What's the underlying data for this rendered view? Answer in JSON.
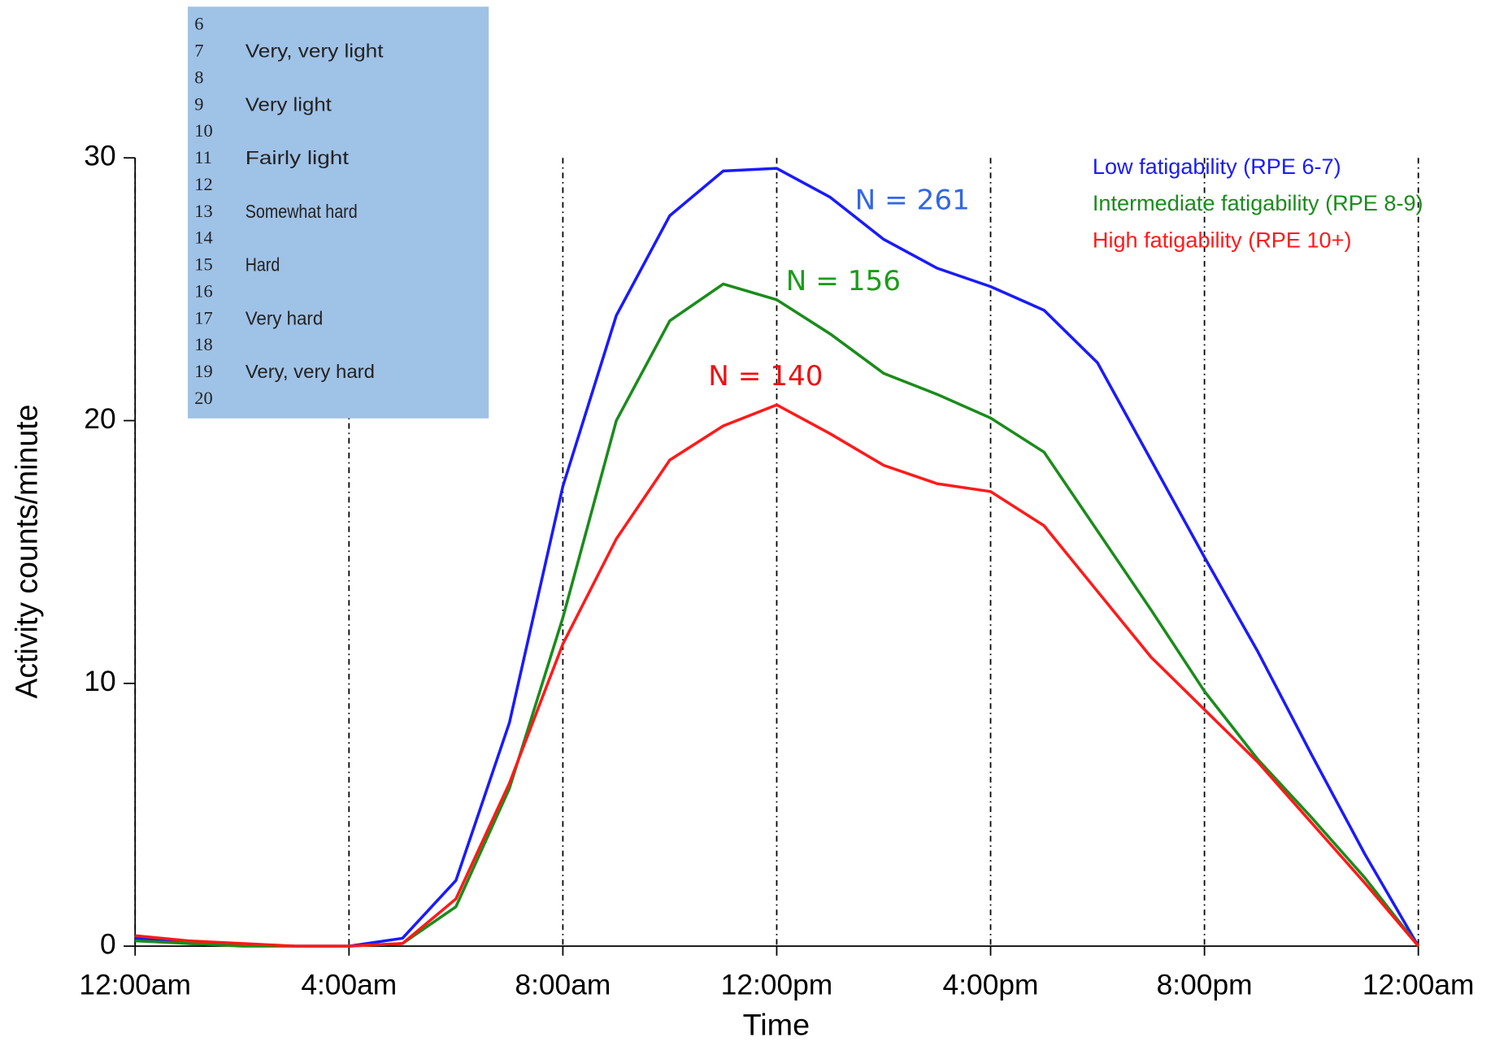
{
  "chart_data": {
    "type": "line",
    "x_label": "Time",
    "y_label": "Activity counts/minute",
    "x": [
      0,
      1,
      2,
      3,
      4,
      5,
      6,
      7,
      8,
      9,
      10,
      11,
      12,
      13,
      14,
      15,
      16,
      17,
      18,
      19,
      20,
      21,
      22,
      23,
      24
    ],
    "xlim": [
      0,
      24
    ],
    "xticks": [
      {
        "value": 0,
        "label": "12:00am"
      },
      {
        "value": 4,
        "label": "4:00am"
      },
      {
        "value": 8,
        "label": "8:00am"
      },
      {
        "value": 12,
        "label": "12:00pm"
      },
      {
        "value": 16,
        "label": "4:00pm"
      },
      {
        "value": 20,
        "label": "8:00pm"
      },
      {
        "value": 24,
        "label": "12:00am"
      }
    ],
    "ylim": [
      0,
      30
    ],
    "yticks": [
      0,
      10,
      20,
      30
    ],
    "grid": true,
    "legend_position": "upper right",
    "series": [
      {
        "name": "Low fatigability (RPE 6-7)",
        "color": "#1a1aff",
        "values": [
          0.3,
          0.1,
          0.05,
          0,
          0,
          0.3,
          2.5,
          8.5,
          17.5,
          24,
          27.8,
          29.5,
          29.6,
          28.5,
          26.9,
          25.8,
          25.1,
          24.2,
          22.2,
          18.5,
          14.8,
          11.2,
          7.3,
          3.5,
          0
        ]
      },
      {
        "name": "Intermediate fatigability (RPE 8-9)",
        "color": "#1a8c1a",
        "values": [
          0.2,
          0.1,
          0,
          0,
          0,
          0.1,
          1.5,
          6,
          12.5,
          20,
          23.8,
          25.2,
          24.6,
          23.3,
          21.8,
          21,
          20.1,
          18.8,
          15.8,
          12.8,
          9.7,
          7.1,
          4.9,
          2.6,
          0
        ]
      },
      {
        "name": "High fatigability (RPE 10+)",
        "color": "#ff1a1a",
        "values": [
          0.4,
          0.2,
          0.1,
          0,
          0,
          0.1,
          1.8,
          6.2,
          11.5,
          15.5,
          18.5,
          19.8,
          20.6,
          19.5,
          18.3,
          17.6,
          17.3,
          16,
          13.5,
          11,
          9,
          7,
          4.7,
          2.4,
          0
        ]
      }
    ],
    "annotations": [
      {
        "text": "N = 261",
        "color": "#3366e6"
      },
      {
        "text": "N = 156",
        "color": "#1a9c1a"
      },
      {
        "text": "N = 140",
        "color": "#ee1111"
      }
    ],
    "rpe_scale": [
      {
        "rpe": "6"
      },
      {
        "rpe": "7",
        "label": "Very, very light"
      },
      {
        "rpe": "8"
      },
      {
        "rpe": "9",
        "label": "Very light"
      },
      {
        "rpe": "10"
      },
      {
        "rpe": "11",
        "label": "Fairly light"
      },
      {
        "rpe": "12"
      },
      {
        "rpe": "13",
        "label": "Somewhat hard"
      },
      {
        "rpe": "14"
      },
      {
        "rpe": "15",
        "label": "Hard"
      },
      {
        "rpe": "16"
      },
      {
        "rpe": "17",
        "label": "Very hard"
      },
      {
        "rpe": "18"
      },
      {
        "rpe": "19",
        "label": "Very, very hard"
      },
      {
        "rpe": "20"
      }
    ]
  }
}
